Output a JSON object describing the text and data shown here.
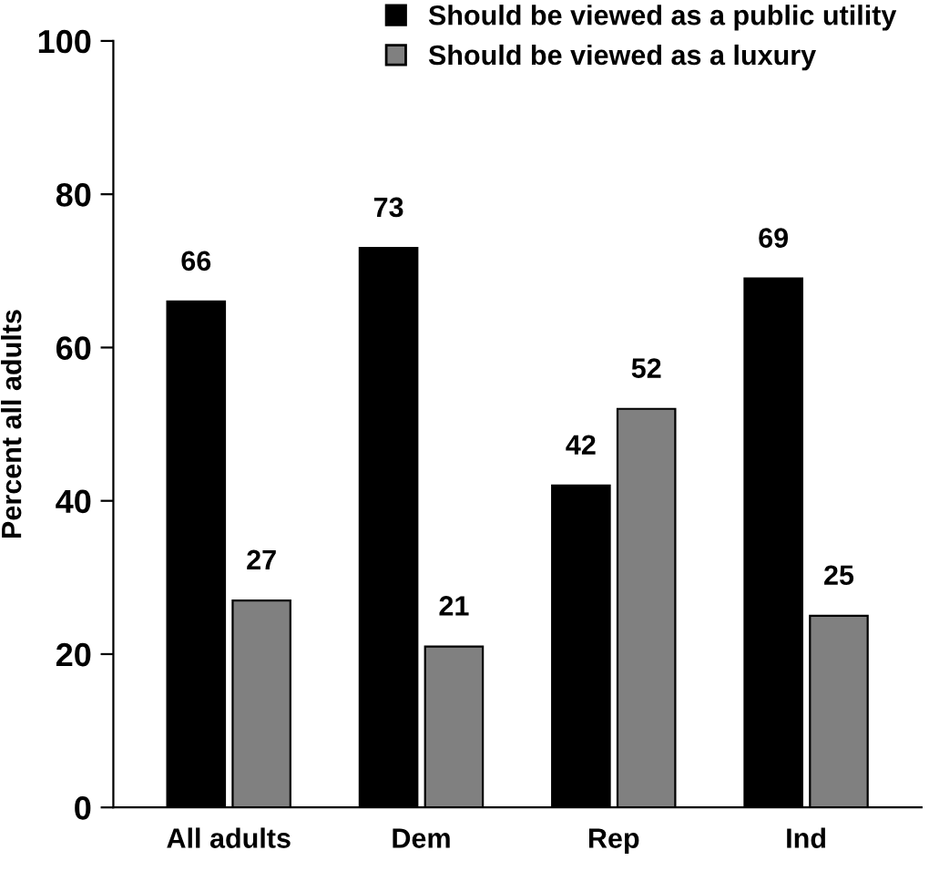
{
  "chart_data": {
    "type": "bar",
    "ylabel": "Percent all adults",
    "categories": [
      "All adults",
      "Dem",
      "Rep",
      "Ind"
    ],
    "series": [
      {
        "name": "Should be viewed as a public utility",
        "color": "#000000",
        "values": [
          66,
          73,
          42,
          69
        ]
      },
      {
        "name": "Should be viewed as a luxury",
        "color": "#808080",
        "values": [
          27,
          21,
          52,
          25
        ]
      }
    ],
    "ylim": [
      0,
      100
    ],
    "yticks": [
      0,
      20,
      40,
      60,
      80,
      100
    ],
    "grid": false,
    "legend": "top right",
    "data_labels": true
  }
}
